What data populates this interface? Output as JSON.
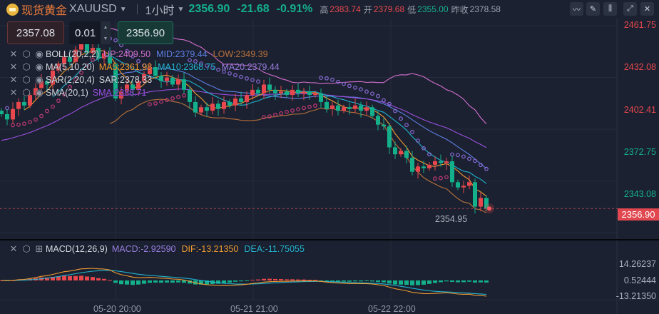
{
  "header": {
    "name": "现货黄金",
    "code": "XAUUSD",
    "interval": "1小时",
    "price": "2356.90",
    "change": "-21.68",
    "change_pct": "-0.91%",
    "high_label": "高",
    "high": "2383.74",
    "open_label": "开",
    "open": "2379.68",
    "low_label": "低",
    "low": "2355.00",
    "prev_label": "昨收",
    "prev": "2378.58"
  },
  "toolbar": [
    "indicator-icon",
    "pencil-icon",
    "candlestick-icon",
    "expand-icon",
    "close-icon"
  ],
  "trade": {
    "sell_price": "2357.08",
    "quantity": "0.01",
    "buy_price": "2356.90"
  },
  "legends": [
    {
      "name": "BOLL(20,2,2)",
      "vals": [
        {
          "t": "UP:2409.50",
          "c": "#d46fcf"
        },
        {
          "t": "MID:2379.44",
          "c": "#5f7fe6"
        },
        {
          "t": "LOW:2349.39",
          "c": "#b8703a"
        }
      ]
    },
    {
      "name": "MA(5,10,20)",
      "vals": [
        {
          "t": "MA5:2361.98",
          "c": "#f09a32"
        },
        {
          "t": "MA10:2368.75",
          "c": "#22b3d0"
        },
        {
          "t": "MA20:2379.44",
          "c": "#9a7ee0"
        }
      ]
    },
    {
      "name": "SAR(2,20,4)",
      "vals": [
        {
          "t": "SAR:2378.33",
          "c": "#d7dbe2"
        }
      ]
    },
    {
      "name": "SMA(20,1)",
      "vals": [
        {
          "t": "SMA:2388.71",
          "c": "#9b4fe0"
        }
      ]
    }
  ],
  "macd_legend": {
    "name": "MACD(12,26,9)",
    "macd": "MACD:-2.92590",
    "dif": "DIF:-13.21350",
    "dea": "DEA:-11.75055"
  },
  "price_axis": [
    {
      "t": "2461.75",
      "c": "#e8474d"
    },
    {
      "t": "2432.08",
      "c": "#e8474d"
    },
    {
      "t": "2402.41",
      "c": "#e8474d"
    },
    {
      "t": "2372.75",
      "c": "#14b08c"
    },
    {
      "t": "2343.08",
      "c": "#14b08c"
    }
  ],
  "current_price_label": "2356.90",
  "low_marker": "2354.95",
  "macd_axis": [
    "14.26237",
    "0.52444",
    "-13.21350"
  ],
  "time_axis": [
    "05-20 20:00",
    "05-21 21:00",
    "05-22 22:00"
  ],
  "colors": {
    "up": "#e8474d",
    "down": "#14b08c",
    "bg": "#1b2130"
  },
  "chart_data": {
    "type": "candlestick",
    "ylim": [
      2343.08,
      2461.75
    ],
    "close": [
      2411,
      2408,
      2414,
      2418,
      2416,
      2422,
      2426,
      2430,
      2428,
      2436,
      2440,
      2444,
      2441,
      2448,
      2452,
      2446,
      2449,
      2443,
      2446,
      2440,
      2420,
      2424,
      2428,
      2425,
      2430,
      2434,
      2438,
      2433,
      2430,
      2432,
      2428,
      2431,
      2425,
      2418,
      2412,
      2415,
      2413,
      2417,
      2414,
      2418,
      2416,
      2420,
      2418,
      2422,
      2425,
      2423,
      2428,
      2425,
      2423,
      2424,
      2422,
      2425,
      2423,
      2424,
      2422,
      2423,
      2418,
      2414,
      2416,
      2413,
      2415,
      2414,
      2416,
      2413,
      2415,
      2410,
      2405,
      2404,
      2392,
      2388,
      2390,
      2386,
      2378,
      2381,
      2380,
      2382,
      2384,
      2383,
      2384,
      2372,
      2369,
      2370,
      2372,
      2358,
      2363,
      2356.9
    ]
  }
}
